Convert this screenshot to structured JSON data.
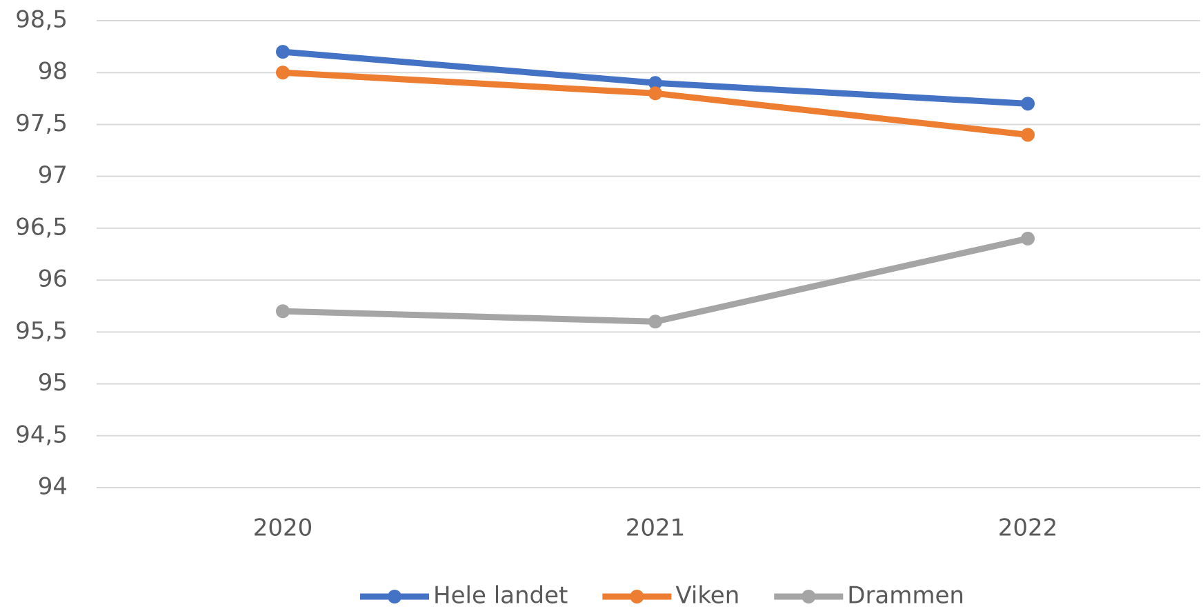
{
  "chart_data": {
    "type": "line",
    "categories": [
      "2020",
      "2021",
      "2022"
    ],
    "series": [
      {
        "name": "Hele landet",
        "color": "#4472c4",
        "values": [
          98.2,
          97.9,
          97.7
        ]
      },
      {
        "name": "Viken",
        "color": "#ed7d31",
        "values": [
          98.0,
          97.8,
          97.4
        ]
      },
      {
        "name": "Drammen",
        "color": "#a5a5a5",
        "values": [
          95.7,
          95.6,
          96.4
        ]
      }
    ],
    "ylim": [
      94,
      98.5
    ],
    "yticks": [
      94,
      {
        "value": 94.5,
        "label": "94,5"
      },
      95,
      {
        "value": 95.5,
        "label": "95,5"
      },
      96,
      {
        "value": 96.5,
        "label": "96,5"
      },
      97,
      {
        "value": 97.5,
        "label": "97,5"
      },
      98,
      {
        "value": 98.5,
        "label": "98,5"
      }
    ],
    "grid": true,
    "legend": "bottom"
  }
}
